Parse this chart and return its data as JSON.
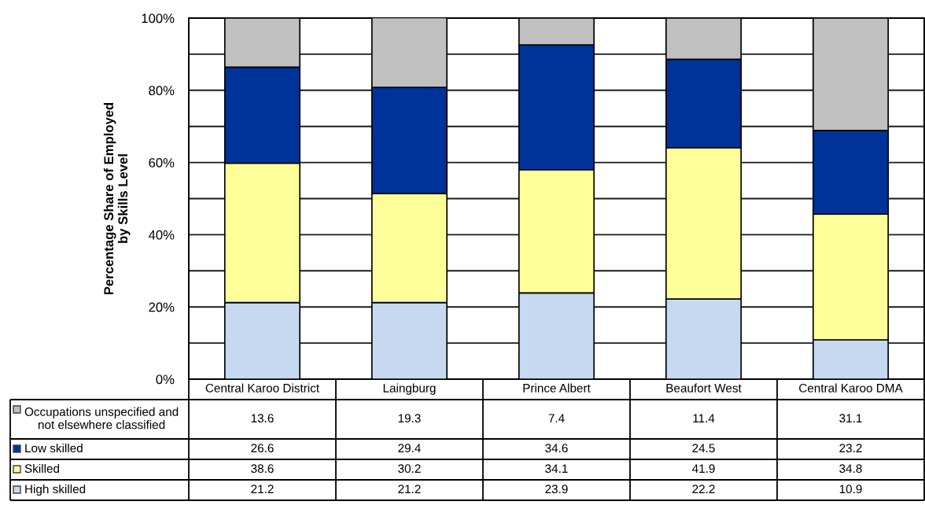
{
  "chart_data": {
    "type": "bar",
    "stacked": true,
    "ylabel": "Percentage Share of Employed\nby Skills Level",
    "categories": [
      "Central Karoo District",
      "Laingburg",
      "Prince Albert",
      "Beaufort West",
      "Central Karoo DMA"
    ],
    "series": [
      {
        "name": "High skilled",
        "color": "#c6d9f1",
        "values": [
          21.2,
          21.2,
          23.9,
          22.2,
          10.9
        ]
      },
      {
        "name": "Skilled",
        "color": "#ffff99",
        "values": [
          38.6,
          30.2,
          34.1,
          41.9,
          34.8
        ]
      },
      {
        "name": "Low skilled",
        "color": "#003399",
        "values": [
          26.6,
          29.4,
          34.6,
          24.5,
          23.2
        ]
      },
      {
        "name": "Occupations unspecified and\nnot elsewhere classified",
        "color": "#c0c0c0",
        "values": [
          13.6,
          19.3,
          7.4,
          11.4,
          31.1
        ]
      }
    ],
    "ylim": [
      0,
      100
    ],
    "yticks": [
      {
        "value": 0,
        "label": "0%"
      },
      {
        "value": 10,
        "label": null
      },
      {
        "value": 20,
        "label": "20%"
      },
      {
        "value": 30,
        "label": null
      },
      {
        "value": 40,
        "label": "40%"
      },
      {
        "value": 50,
        "label": null
      },
      {
        "value": 60,
        "label": "60%"
      },
      {
        "value": 70,
        "label": null
      },
      {
        "value": 80,
        "label": "80%"
      },
      {
        "value": 90,
        "label": null
      },
      {
        "value": 100,
        "label": "100%"
      }
    ],
    "grid": "y",
    "legend": "bottom",
    "data_labels": true
  }
}
